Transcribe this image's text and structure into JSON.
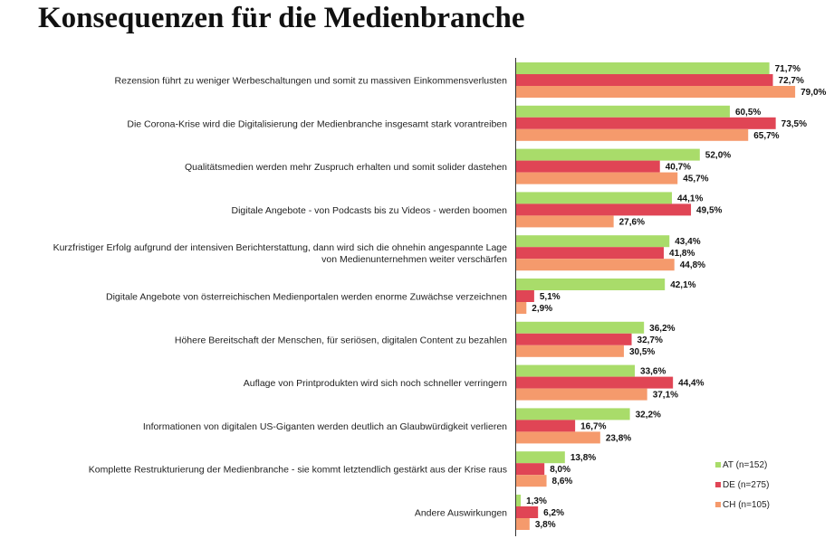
{
  "title": "Konsequenzen für die Medienbranche",
  "chart_data": {
    "type": "bar",
    "orientation": "horizontal",
    "title": "Konsequenzen für die Medienbranche",
    "categories": [
      [
        "Rezension führt zu weniger Werbeschaltungen und somit zu massiven Einkommensverlusten"
      ],
      [
        "Die Corona-Krise wird die Digitalisierung der Medienbranche insgesamt stark vorantreiben"
      ],
      [
        "Qualitätsmedien werden mehr Zuspruch erhalten und somit solider dastehen"
      ],
      [
        "Digitale Angebote - von Podcasts bis zu Videos - werden boomen"
      ],
      [
        "Kurzfristiger Erfolg aufgrund der intensiven Berichterstattung, dann wird sich die ohnehin angespannte Lage",
        "von Medienunternehmen weiter verschärfen"
      ],
      [
        "Digitale Angebote von österreichischen Medienportalen werden enorme Zuwächse verzeichnen"
      ],
      [
        "Höhere Bereitschaft der Menschen, für seriösen, digitalen Content zu bezahlen"
      ],
      [
        "Auflage von Printprodukten wird sich noch schneller verringern"
      ],
      [
        "Informationen von digitalen US-Giganten werden deutlich an Glaubwürdigkeit verlieren"
      ],
      [
        "Komplette Restrukturierung der Medienbranche - sie kommt letztendlich gestärkt aus der Krise raus"
      ],
      [
        "Andere Auswirkungen"
      ]
    ],
    "series": [
      {
        "name": "AT (n=152)",
        "color": "#a9dc6a",
        "values": [
          71.7,
          60.5,
          52.0,
          44.1,
          43.4,
          42.1,
          36.2,
          33.6,
          32.2,
          13.8,
          1.3
        ],
        "labels": [
          "71,7%",
          "60,5%",
          "52,0%",
          "44,1%",
          "43,4%",
          "42,1%",
          "36,2%",
          "33,6%",
          "32,2%",
          "13,8%",
          "1,3%"
        ]
      },
      {
        "name": "DE (n=275)",
        "color": "#e04555",
        "values": [
          72.7,
          73.5,
          40.7,
          49.5,
          41.8,
          5.1,
          32.7,
          44.4,
          16.7,
          8.0,
          6.2
        ],
        "labels": [
          "72,7%",
          "73,5%",
          "40,7%",
          "49,5%",
          "41,8%",
          "5,1%",
          "32,7%",
          "44,4%",
          "16,7%",
          "8,0%",
          "6,2%"
        ]
      },
      {
        "name": "CH (n=105)",
        "color": "#f59a6c",
        "values": [
          79.0,
          65.7,
          45.7,
          27.6,
          44.8,
          2.9,
          30.5,
          37.1,
          23.8,
          8.6,
          3.8
        ],
        "labels": [
          "79,0%",
          "65,7%",
          "45,7%",
          "27,6%",
          "44,8%",
          "2,9%",
          "30,5%",
          "37,1%",
          "23,8%",
          "8,6%",
          "3,8%"
        ]
      }
    ],
    "xlim": [
      0,
      100
    ],
    "grid": false,
    "legend": "bottom-right",
    "xlabel": "",
    "ylabel": ""
  }
}
